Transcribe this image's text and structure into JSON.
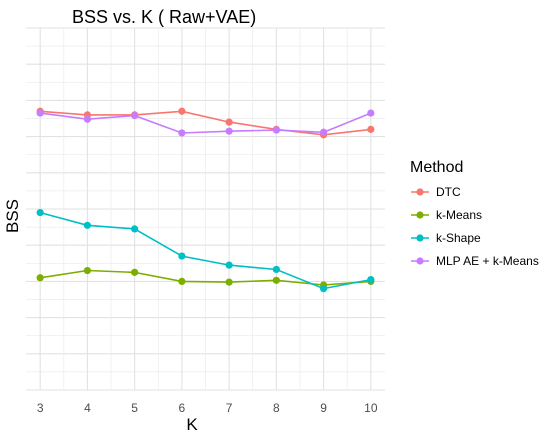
{
  "chart_data": {
    "type": "line",
    "title": "BSS vs. K  ( Raw+VAE)",
    "xlabel": "K",
    "ylabel": "BSS",
    "x": [
      3,
      4,
      5,
      6,
      7,
      8,
      9,
      10
    ],
    "ylim": [
      0,
      10
    ],
    "grid": true,
    "legend": {
      "title": "Method",
      "position": "right"
    },
    "series": [
      {
        "name": "DTC",
        "color": "#F8766D",
        "values": [
          7.7,
          7.6,
          7.6,
          7.7,
          7.4,
          7.2,
          7.05,
          7.2
        ]
      },
      {
        "name": "k-Means",
        "color": "#7CAE00",
        "values": [
          3.1,
          3.3,
          3.25,
          3.0,
          2.98,
          3.03,
          2.9,
          3.0
        ]
      },
      {
        "name": "k-Shape",
        "color": "#00BFC4",
        "values": [
          4.9,
          4.55,
          4.45,
          3.7,
          3.45,
          3.33,
          2.8,
          3.05
        ]
      },
      {
        "name": "MLP AE + k-Means",
        "color": "#C77CFF",
        "values": [
          7.65,
          7.48,
          7.58,
          7.1,
          7.15,
          7.18,
          7.12,
          7.65
        ]
      }
    ]
  }
}
